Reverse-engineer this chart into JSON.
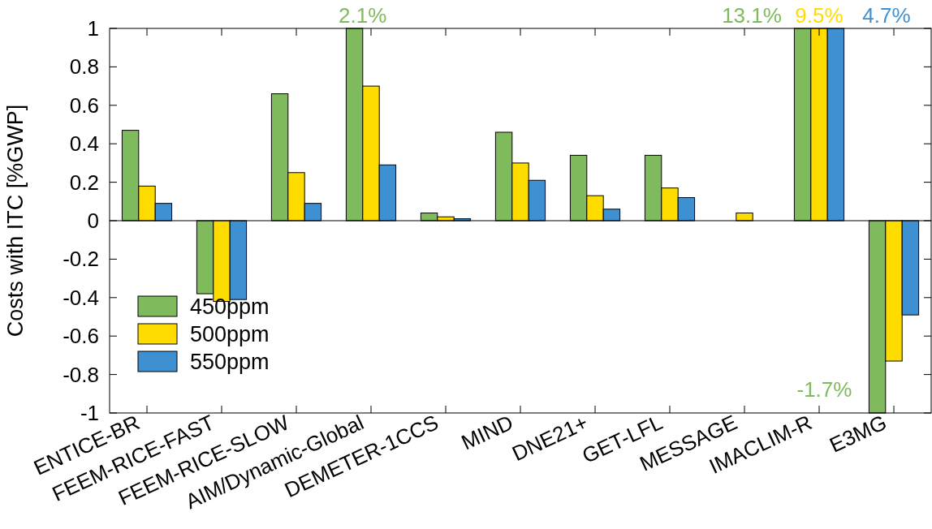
{
  "chart_data": {
    "type": "bar",
    "ylabel": "Costs with ITC [%GWP]",
    "categories": [
      "ENTICE-BR",
      "FEEM-RICE-FAST",
      "FEEM-RICE-SLOW",
      "AIM/Dynamic-Global",
      "DEMETER-1CCS",
      "MIND",
      "DNE21+",
      "GET-LFL",
      "MESSAGE",
      "IMACLIM-R",
      "E3MG"
    ],
    "series": [
      {
        "name": "450ppm",
        "color": "#7fba5c",
        "values": [
          0.47,
          -0.38,
          0.66,
          1,
          0.04,
          0.46,
          0.34,
          0.34,
          null,
          1,
          -1
        ]
      },
      {
        "name": "500ppm",
        "color": "#ffdc00",
        "values": [
          0.18,
          -0.42,
          0.25,
          0.7,
          0.02,
          0.3,
          0.13,
          0.17,
          0.04,
          1,
          -0.73
        ]
      },
      {
        "name": "550ppm",
        "color": "#3f90d0",
        "values": [
          0.09,
          -0.41,
          0.09,
          0.29,
          0.01,
          0.21,
          0.06,
          0.12,
          null,
          1,
          -0.49
        ]
      }
    ],
    "ylim": [
      -1,
      1
    ],
    "yticks": [
      -1,
      -0.8,
      -0.6,
      -0.4,
      -0.2,
      0,
      0.2,
      0.4,
      0.6,
      0.8,
      1
    ],
    "ref_lines": [
      {
        "axis": "y",
        "value": 0,
        "color": "#000000"
      }
    ],
    "legend": "bottom left",
    "annotations": [
      "2.1%",
      {
        "text": "13.1%",
        "x": "IMACLIM-R",
        "y": 1
      },
      {
        "text": "9.5%",
        "x": "IMACLIM-R",
        "y": 1
      },
      {
        "text": "4.7%",
        "x": "IMACLIM-R",
        "y": 1
      },
      "-1.7%"
    ]
  }
}
